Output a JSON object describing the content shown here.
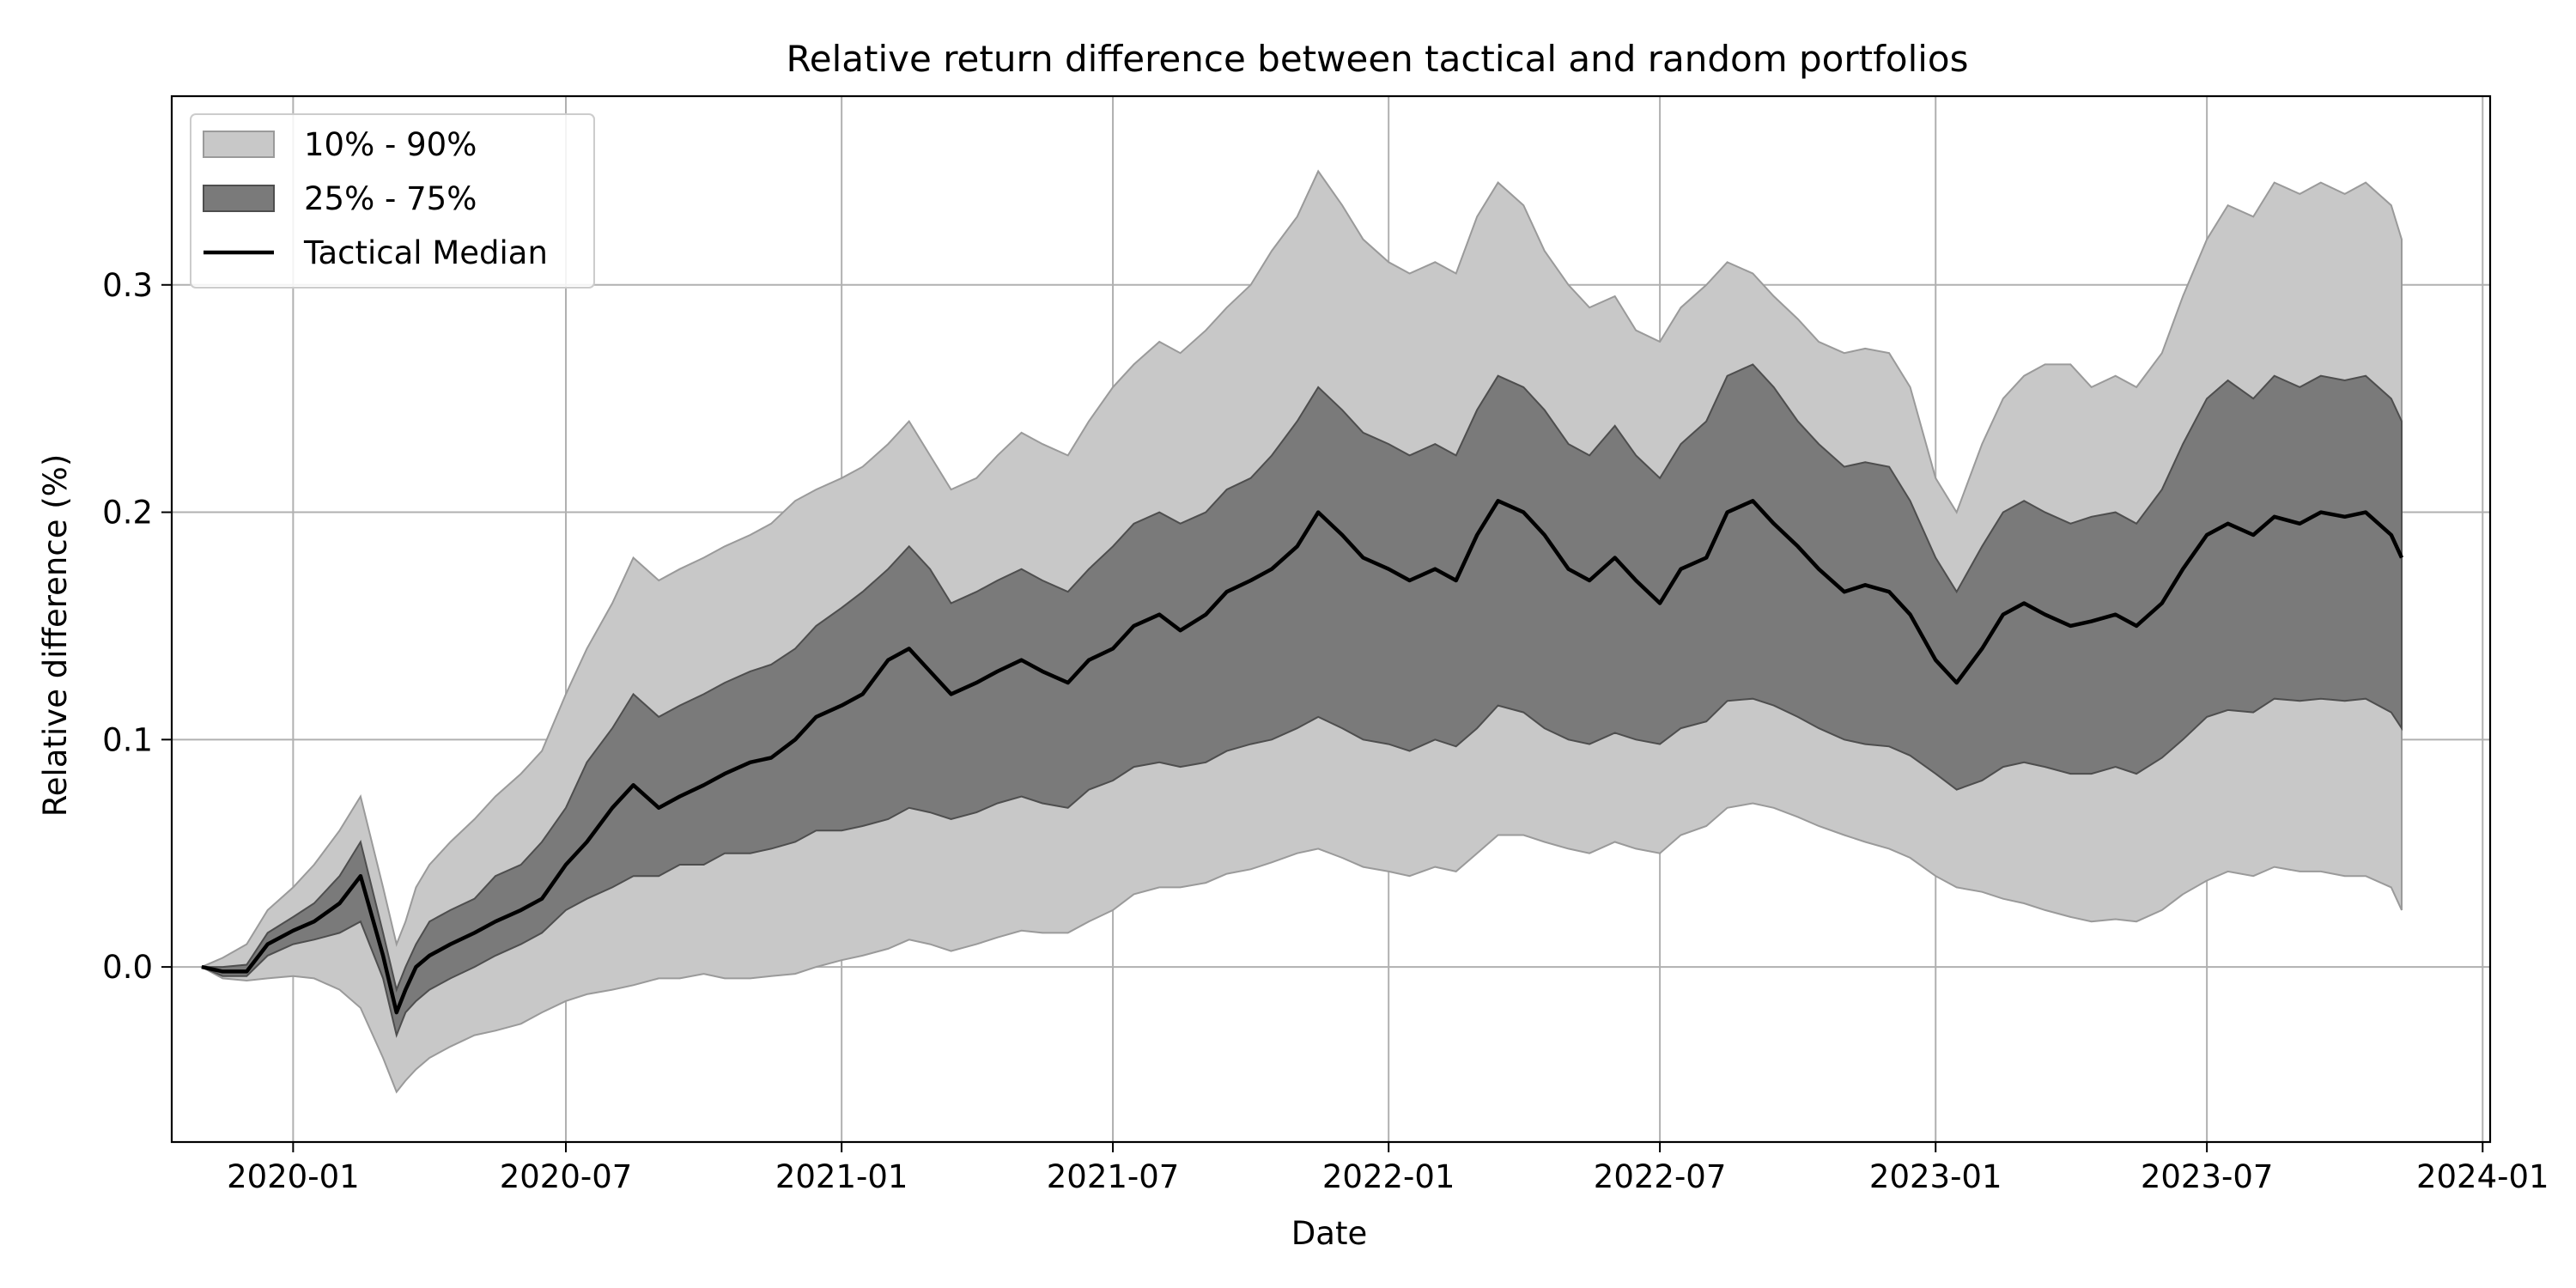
{
  "chart_data": {
    "type": "area",
    "title": "Relative return difference between tactical and random portfolios",
    "xlabel": "Date",
    "ylabel": "Relative difference (%)",
    "xlim": [
      "2019-10-12",
      "2024-01-06"
    ],
    "ylim": [
      -0.077,
      0.383
    ],
    "x_ticks": [
      "2020-01",
      "2020-07",
      "2021-01",
      "2021-07",
      "2022-01",
      "2022-07",
      "2023-01",
      "2023-07",
      "2024-01"
    ],
    "y_ticks": [
      "0.0",
      "0.1",
      "0.2",
      "0.3"
    ],
    "grid": true,
    "legend_position": "top-left",
    "legend": [
      {
        "label": "10% - 90%",
        "kind": "band",
        "color": "#c8c8c8"
      },
      {
        "label": "25% - 75%",
        "kind": "band",
        "color": "#7a7a7a"
      },
      {
        "label": "Tactical Median",
        "kind": "line",
        "color": "#000000"
      }
    ],
    "x": [
      "2019-11-01",
      "2019-11-15",
      "2019-12-01",
      "2019-12-15",
      "2020-01-01",
      "2020-01-15",
      "2020-02-01",
      "2020-02-15",
      "2020-03-01",
      "2020-03-10",
      "2020-03-16",
      "2020-03-23",
      "2020-04-01",
      "2020-04-15",
      "2020-05-01",
      "2020-05-15",
      "2020-06-01",
      "2020-06-15",
      "2020-07-01",
      "2020-07-15",
      "2020-08-01",
      "2020-08-15",
      "2020-09-01",
      "2020-09-15",
      "2020-10-01",
      "2020-10-15",
      "2020-11-01",
      "2020-11-15",
      "2020-12-01",
      "2020-12-15",
      "2021-01-01",
      "2021-01-15",
      "2021-02-01",
      "2021-02-15",
      "2021-03-01",
      "2021-03-15",
      "2021-04-01",
      "2021-04-15",
      "2021-05-01",
      "2021-05-15",
      "2021-06-01",
      "2021-06-15",
      "2021-07-01",
      "2021-07-15",
      "2021-08-01",
      "2021-08-15",
      "2021-09-01",
      "2021-09-15",
      "2021-10-01",
      "2021-10-15",
      "2021-11-01",
      "2021-11-15",
      "2021-12-01",
      "2021-12-15",
      "2022-01-01",
      "2022-01-15",
      "2022-02-01",
      "2022-02-15",
      "2022-03-01",
      "2022-03-15",
      "2022-04-01",
      "2022-04-15",
      "2022-05-01",
      "2022-05-15",
      "2022-06-01",
      "2022-06-15",
      "2022-07-01",
      "2022-07-15",
      "2022-08-01",
      "2022-08-15",
      "2022-09-01",
      "2022-09-15",
      "2022-10-01",
      "2022-10-15",
      "2022-11-01",
      "2022-11-15",
      "2022-12-01",
      "2022-12-15",
      "2023-01-01",
      "2023-01-15",
      "2023-02-01",
      "2023-02-15",
      "2023-03-01",
      "2023-03-15",
      "2023-04-01",
      "2023-04-15",
      "2023-05-01",
      "2023-05-15",
      "2023-06-01",
      "2023-06-15",
      "2023-07-01",
      "2023-07-15",
      "2023-08-01",
      "2023-08-15",
      "2023-09-01",
      "2023-09-15",
      "2023-10-01",
      "2023-10-15",
      "2023-11-01",
      "2023-11-08"
    ],
    "series": [
      {
        "name": "Tactical Median",
        "values": [
          0.0,
          -0.002,
          -0.002,
          0.01,
          0.016,
          0.02,
          0.028,
          0.04,
          0.005,
          -0.02,
          -0.01,
          0.0,
          0.005,
          0.01,
          0.015,
          0.02,
          0.025,
          0.03,
          0.045,
          0.055,
          0.07,
          0.08,
          0.07,
          0.075,
          0.08,
          0.085,
          0.09,
          0.092,
          0.1,
          0.11,
          0.115,
          0.12,
          0.135,
          0.14,
          0.13,
          0.12,
          0.125,
          0.13,
          0.135,
          0.13,
          0.125,
          0.135,
          0.14,
          0.15,
          0.155,
          0.148,
          0.155,
          0.165,
          0.17,
          0.175,
          0.185,
          0.2,
          0.19,
          0.18,
          0.175,
          0.17,
          0.175,
          0.17,
          0.19,
          0.205,
          0.2,
          0.19,
          0.175,
          0.17,
          0.18,
          0.17,
          0.16,
          0.175,
          0.18,
          0.2,
          0.205,
          0.195,
          0.185,
          0.175,
          0.165,
          0.168,
          0.165,
          0.155,
          0.135,
          0.125,
          0.14,
          0.155,
          0.16,
          0.155,
          0.15,
          0.152,
          0.155,
          0.15,
          0.16,
          0.175,
          0.19,
          0.195,
          0.19,
          0.198,
          0.195,
          0.2,
          0.198,
          0.2,
          0.19,
          0.18
        ]
      },
      {
        "name": "25%",
        "values": [
          0.0,
          -0.004,
          -0.004,
          0.005,
          0.01,
          0.012,
          0.015,
          0.02,
          -0.005,
          -0.03,
          -0.02,
          -0.015,
          -0.01,
          -0.005,
          0.0,
          0.005,
          0.01,
          0.015,
          0.025,
          0.03,
          0.035,
          0.04,
          0.04,
          0.045,
          0.045,
          0.05,
          0.05,
          0.052,
          0.055,
          0.06,
          0.06,
          0.062,
          0.065,
          0.07,
          0.068,
          0.065,
          0.068,
          0.072,
          0.075,
          0.072,
          0.07,
          0.078,
          0.082,
          0.088,
          0.09,
          0.088,
          0.09,
          0.095,
          0.098,
          0.1,
          0.105,
          0.11,
          0.105,
          0.1,
          0.098,
          0.095,
          0.1,
          0.097,
          0.105,
          0.115,
          0.112,
          0.105,
          0.1,
          0.098,
          0.103,
          0.1,
          0.098,
          0.105,
          0.108,
          0.117,
          0.118,
          0.115,
          0.11,
          0.105,
          0.1,
          0.098,
          0.097,
          0.093,
          0.085,
          0.078,
          0.082,
          0.088,
          0.09,
          0.088,
          0.085,
          0.085,
          0.088,
          0.085,
          0.092,
          0.1,
          0.11,
          0.113,
          0.112,
          0.118,
          0.117,
          0.118,
          0.117,
          0.118,
          0.112,
          0.105
        ]
      },
      {
        "name": "75%",
        "values": [
          0.0,
          0.0,
          0.001,
          0.015,
          0.022,
          0.028,
          0.04,
          0.055,
          0.015,
          -0.01,
          0.0,
          0.01,
          0.02,
          0.025,
          0.03,
          0.04,
          0.045,
          0.055,
          0.07,
          0.09,
          0.105,
          0.12,
          0.11,
          0.115,
          0.12,
          0.125,
          0.13,
          0.133,
          0.14,
          0.15,
          0.158,
          0.165,
          0.175,
          0.185,
          0.175,
          0.16,
          0.165,
          0.17,
          0.175,
          0.17,
          0.165,
          0.175,
          0.185,
          0.195,
          0.2,
          0.195,
          0.2,
          0.21,
          0.215,
          0.225,
          0.24,
          0.255,
          0.245,
          0.235,
          0.23,
          0.225,
          0.23,
          0.225,
          0.245,
          0.26,
          0.255,
          0.245,
          0.23,
          0.225,
          0.238,
          0.225,
          0.215,
          0.23,
          0.24,
          0.26,
          0.265,
          0.255,
          0.24,
          0.23,
          0.22,
          0.222,
          0.22,
          0.205,
          0.18,
          0.165,
          0.185,
          0.2,
          0.205,
          0.2,
          0.195,
          0.198,
          0.2,
          0.195,
          0.21,
          0.23,
          0.25,
          0.258,
          0.25,
          0.26,
          0.255,
          0.26,
          0.258,
          0.26,
          0.25,
          0.24
        ]
      },
      {
        "name": "10%",
        "values": [
          0.0,
          -0.005,
          -0.006,
          -0.005,
          -0.004,
          -0.005,
          -0.01,
          -0.018,
          -0.04,
          -0.055,
          -0.05,
          -0.045,
          -0.04,
          -0.035,
          -0.03,
          -0.028,
          -0.025,
          -0.02,
          -0.015,
          -0.012,
          -0.01,
          -0.008,
          -0.005,
          -0.005,
          -0.003,
          -0.005,
          -0.005,
          -0.004,
          -0.003,
          0.0,
          0.003,
          0.005,
          0.008,
          0.012,
          0.01,
          0.007,
          0.01,
          0.013,
          0.016,
          0.015,
          0.015,
          0.02,
          0.025,
          0.032,
          0.035,
          0.035,
          0.037,
          0.041,
          0.043,
          0.046,
          0.05,
          0.052,
          0.048,
          0.044,
          0.042,
          0.04,
          0.044,
          0.042,
          0.05,
          0.058,
          0.058,
          0.055,
          0.052,
          0.05,
          0.055,
          0.052,
          0.05,
          0.058,
          0.062,
          0.07,
          0.072,
          0.07,
          0.066,
          0.062,
          0.058,
          0.055,
          0.052,
          0.048,
          0.04,
          0.035,
          0.033,
          0.03,
          0.028,
          0.025,
          0.022,
          0.02,
          0.021,
          0.02,
          0.025,
          0.032,
          0.038,
          0.042,
          0.04,
          0.044,
          0.042,
          0.042,
          0.04,
          0.04,
          0.035,
          0.025
        ]
      },
      {
        "name": "90%",
        "values": [
          0.0,
          0.004,
          0.01,
          0.025,
          0.035,
          0.045,
          0.06,
          0.075,
          0.035,
          0.01,
          0.02,
          0.035,
          0.045,
          0.055,
          0.065,
          0.075,
          0.085,
          0.095,
          0.12,
          0.14,
          0.16,
          0.18,
          0.17,
          0.175,
          0.18,
          0.185,
          0.19,
          0.195,
          0.205,
          0.21,
          0.215,
          0.22,
          0.23,
          0.24,
          0.225,
          0.21,
          0.215,
          0.225,
          0.235,
          0.23,
          0.225,
          0.24,
          0.255,
          0.265,
          0.275,
          0.27,
          0.28,
          0.29,
          0.3,
          0.315,
          0.33,
          0.35,
          0.335,
          0.32,
          0.31,
          0.305,
          0.31,
          0.305,
          0.33,
          0.345,
          0.335,
          0.315,
          0.3,
          0.29,
          0.295,
          0.28,
          0.275,
          0.29,
          0.3,
          0.31,
          0.305,
          0.295,
          0.285,
          0.275,
          0.27,
          0.272,
          0.27,
          0.255,
          0.215,
          0.2,
          0.23,
          0.25,
          0.26,
          0.265,
          0.265,
          0.255,
          0.26,
          0.255,
          0.27,
          0.295,
          0.32,
          0.335,
          0.33,
          0.345,
          0.34,
          0.345,
          0.34,
          0.345,
          0.335,
          0.32
        ]
      }
    ]
  }
}
